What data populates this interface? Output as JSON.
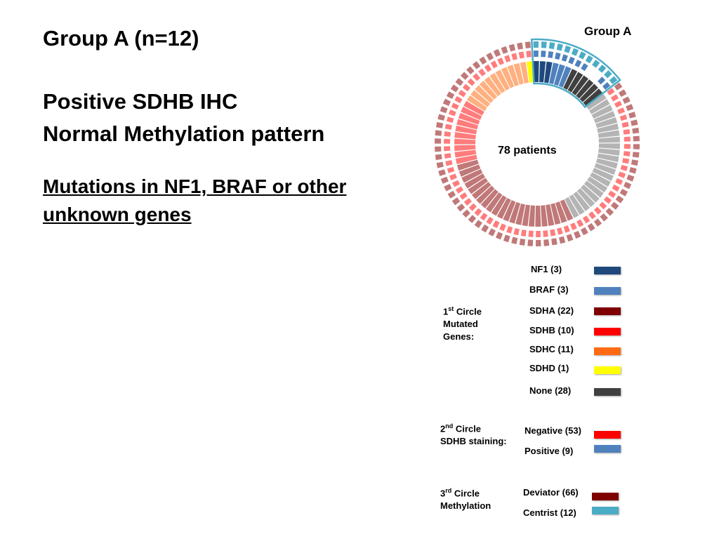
{
  "slide": {
    "title": "Group A (n=12)",
    "subtitle_line1": "Positive SDHB IHC",
    "subtitle_line2": "Normal Methylation pattern",
    "mutations_line1": "Mutations in NF1, BRAF or other",
    "mutations_line2": "unknown genes"
  },
  "figure": {
    "group_label": "Group A",
    "center_label": "78 patients",
    "circle1": {
      "ordinal": "1",
      "ordinal_suffix": "st",
      "title_rest": " Circle",
      "line2": "Mutated",
      "line3": "Genes:",
      "items": [
        {
          "label": "NF1 (3)",
          "color": "#1f497d"
        },
        {
          "label": "BRAF (3)",
          "color": "#4f81bd"
        },
        {
          "label": "SDHA (22)",
          "color": "#7f0000"
        },
        {
          "label": "SDHB (10)",
          "color": "#ff0000"
        },
        {
          "label": "SDHC (11)",
          "color": "#ff6a13"
        },
        {
          "label": "SDHD (1)",
          "color": "#ffff00"
        },
        {
          "label": "None (28)",
          "color": "#404040"
        }
      ]
    },
    "circle2": {
      "ordinal": "2",
      "ordinal_suffix": "nd",
      "title_rest": " Circle",
      "line2": "SDHB staining:",
      "items": [
        {
          "label": "Negative (53)",
          "color": "#ff0000"
        },
        {
          "label": "Positive (9)",
          "color": "#4f81bd"
        }
      ]
    },
    "circle3": {
      "ordinal": "3",
      "ordinal_suffix": "rd",
      "title_rest": " Circle",
      "line2": "Methylation",
      "items": [
        {
          "label": "Deviator (66)",
          "color": "#7f0000"
        },
        {
          "label": "Centrist (12)",
          "color": "#4bacc6"
        }
      ]
    }
  }
}
